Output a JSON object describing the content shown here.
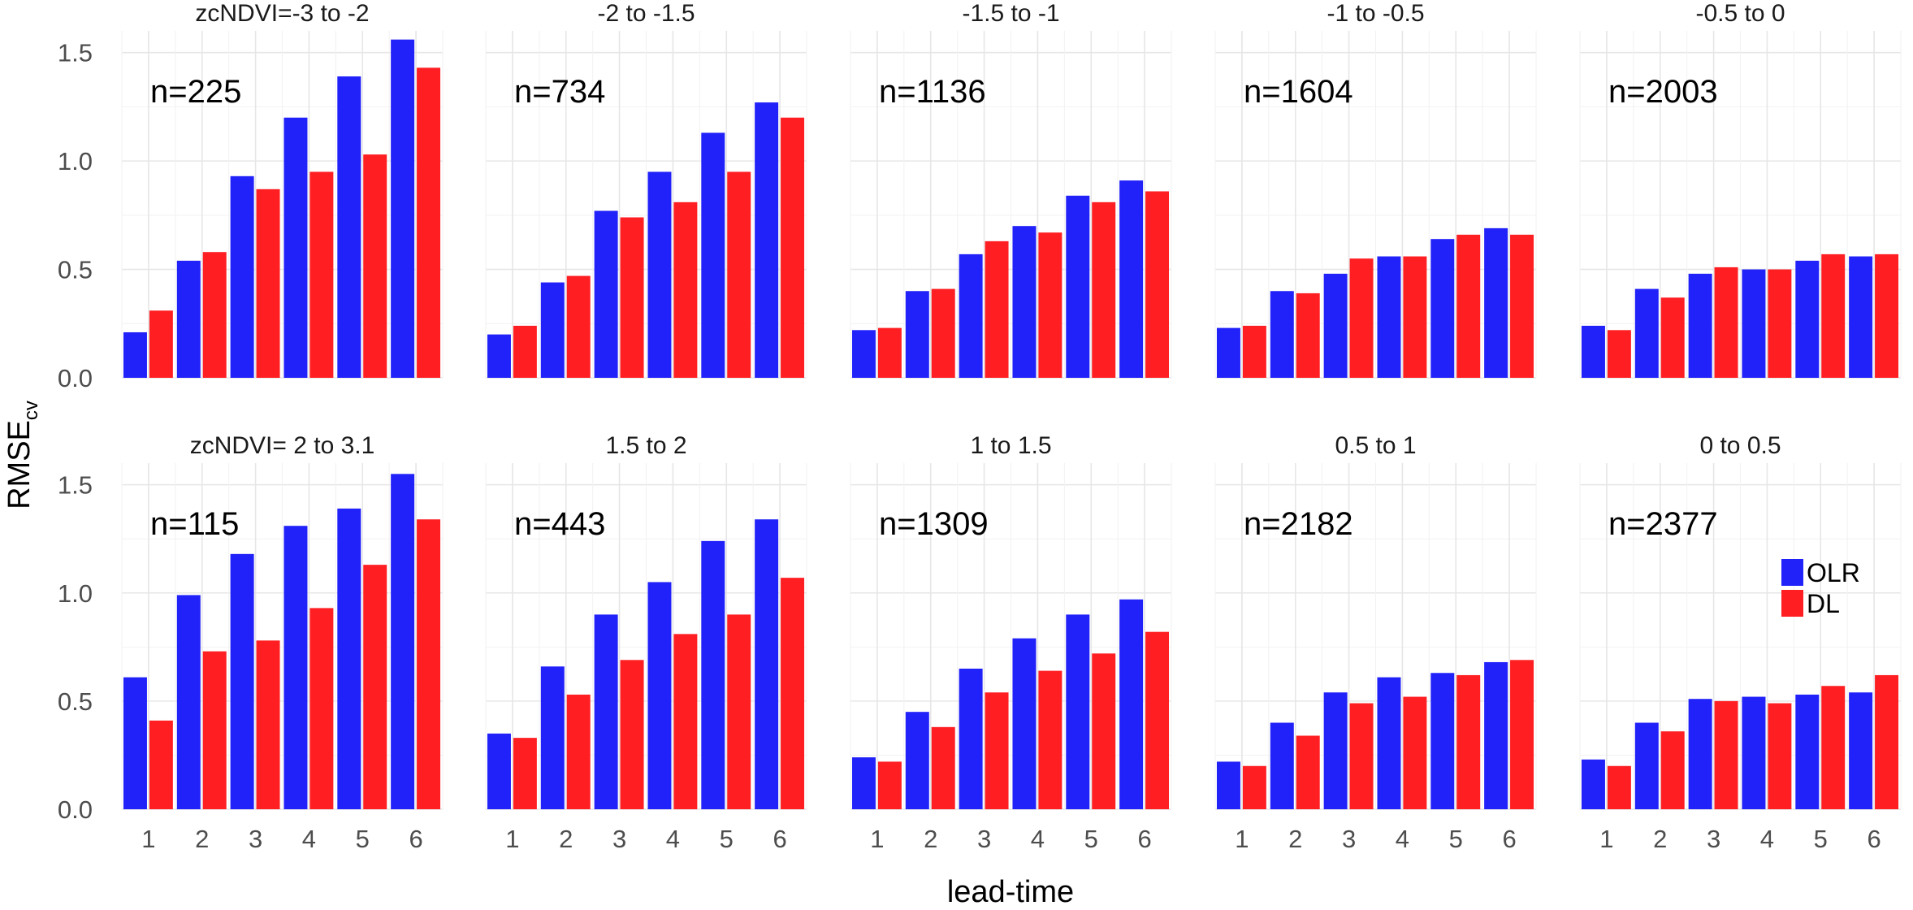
{
  "colors": {
    "OLR": "#2121fa",
    "DL": "#ff1f23"
  },
  "chart_data": {
    "type": "bar",
    "xlabel": "lead-time",
    "ylabel": {
      "main": "RMSE",
      "sub": "cv"
    },
    "x": [
      1,
      2,
      3,
      4,
      5,
      6
    ],
    "ylim": [
      0,
      1.6
    ],
    "yticks": [
      "0.0",
      "0.5",
      "1.0",
      "1.5"
    ],
    "grid": true,
    "legend": {
      "position": "right",
      "entries": [
        "OLR",
        "DL"
      ]
    },
    "panels": [
      {
        "strip": "zcNDVI=-3 to -2",
        "n": "n=225",
        "series": [
          {
            "name": "OLR",
            "values": [
              0.21,
              0.54,
              0.93,
              1.2,
              1.39,
              1.56
            ]
          },
          {
            "name": "DL",
            "values": [
              0.31,
              0.58,
              0.87,
              0.95,
              1.03,
              1.43
            ]
          }
        ]
      },
      {
        "strip": "-2 to -1.5",
        "n": "n=734",
        "series": [
          {
            "name": "OLR",
            "values": [
              0.2,
              0.44,
              0.77,
              0.95,
              1.13,
              1.27
            ]
          },
          {
            "name": "DL",
            "values": [
              0.24,
              0.47,
              0.74,
              0.81,
              0.95,
              1.2
            ]
          }
        ]
      },
      {
        "strip": "-1.5 to -1",
        "n": "n=1136",
        "series": [
          {
            "name": "OLR",
            "values": [
              0.22,
              0.4,
              0.57,
              0.7,
              0.84,
              0.91
            ]
          },
          {
            "name": "DL",
            "values": [
              0.23,
              0.41,
              0.63,
              0.67,
              0.81,
              0.86
            ]
          }
        ]
      },
      {
        "strip": "-1 to -0.5",
        "n": "n=1604",
        "series": [
          {
            "name": "OLR",
            "values": [
              0.23,
              0.4,
              0.48,
              0.56,
              0.64,
              0.69
            ]
          },
          {
            "name": "DL",
            "values": [
              0.24,
              0.39,
              0.55,
              0.56,
              0.66,
              0.66
            ]
          }
        ]
      },
      {
        "strip": "-0.5 to 0",
        "n": "n=2003",
        "series": [
          {
            "name": "OLR",
            "values": [
              0.24,
              0.41,
              0.48,
              0.5,
              0.54,
              0.56
            ]
          },
          {
            "name": "DL",
            "values": [
              0.22,
              0.37,
              0.51,
              0.5,
              0.57,
              0.57
            ]
          }
        ]
      },
      {
        "strip": "zcNDVI= 2 to 3.1",
        "n": "n=115",
        "series": [
          {
            "name": "OLR",
            "values": [
              0.61,
              0.99,
              1.18,
              1.31,
              1.39,
              1.55
            ]
          },
          {
            "name": "DL",
            "values": [
              0.41,
              0.73,
              0.78,
              0.93,
              1.13,
              1.34
            ]
          }
        ]
      },
      {
        "strip": "1.5 to 2",
        "n": "n=443",
        "series": [
          {
            "name": "OLR",
            "values": [
              0.35,
              0.66,
              0.9,
              1.05,
              1.24,
              1.34
            ]
          },
          {
            "name": "DL",
            "values": [
              0.33,
              0.53,
              0.69,
              0.81,
              0.9,
              1.07
            ]
          }
        ]
      },
      {
        "strip": "1 to 1.5",
        "n": "n=1309",
        "series": [
          {
            "name": "OLR",
            "values": [
              0.24,
              0.45,
              0.65,
              0.79,
              0.9,
              0.97
            ]
          },
          {
            "name": "DL",
            "values": [
              0.22,
              0.38,
              0.54,
              0.64,
              0.72,
              0.82
            ]
          }
        ]
      },
      {
        "strip": "0.5 to 1",
        "n": "n=2182",
        "series": [
          {
            "name": "OLR",
            "values": [
              0.22,
              0.4,
              0.54,
              0.61,
              0.63,
              0.68
            ]
          },
          {
            "name": "DL",
            "values": [
              0.2,
              0.34,
              0.49,
              0.52,
              0.62,
              0.69
            ]
          }
        ]
      },
      {
        "strip": "0 to 0.5",
        "n": "n=2377",
        "series": [
          {
            "name": "OLR",
            "values": [
              0.23,
              0.4,
              0.51,
              0.52,
              0.53,
              0.54
            ]
          },
          {
            "name": "DL",
            "values": [
              0.2,
              0.36,
              0.5,
              0.49,
              0.57,
              0.62
            ]
          }
        ]
      }
    ]
  }
}
